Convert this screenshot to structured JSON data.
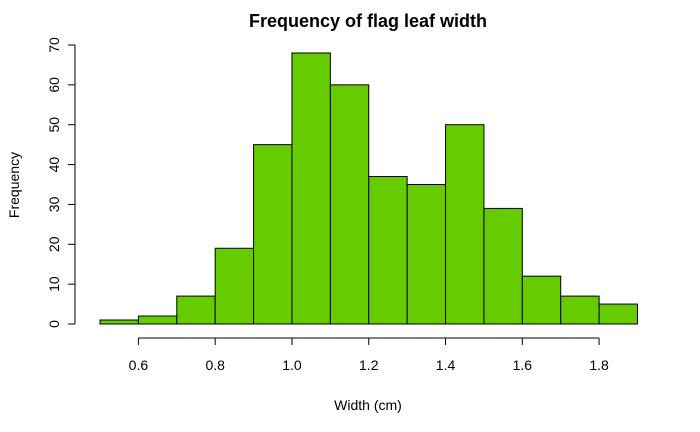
{
  "chart_data": {
    "type": "bar",
    "title": "Frequency of flag leaf width",
    "xlabel": "Width (cm)",
    "ylabel": "Frequency",
    "bin_edges": [
      0.5,
      0.6,
      0.7,
      0.8,
      0.9,
      1.0,
      1.1,
      1.2,
      1.3,
      1.4,
      1.5,
      1.6,
      1.7,
      1.8,
      1.9
    ],
    "values": [
      1,
      2,
      7,
      19,
      45,
      68,
      60,
      37,
      35,
      50,
      29,
      12,
      7,
      5
    ],
    "xlim": [
      0.5,
      1.9
    ],
    "ylim": [
      0,
      70
    ],
    "x_ticks": [
      0.6,
      0.8,
      1.0,
      1.2,
      1.4,
      1.6,
      1.8
    ],
    "x_tick_labels": [
      "0.6",
      "0.8",
      "1.0",
      "1.2",
      "1.4",
      "1.6",
      "1.8"
    ],
    "y_ticks": [
      0,
      10,
      20,
      30,
      40,
      50,
      60,
      70
    ],
    "y_tick_labels": [
      "0",
      "10",
      "20",
      "30",
      "40",
      "50",
      "60",
      "70"
    ],
    "bar_color": "#66cc00",
    "grid": false,
    "legend": "none"
  }
}
